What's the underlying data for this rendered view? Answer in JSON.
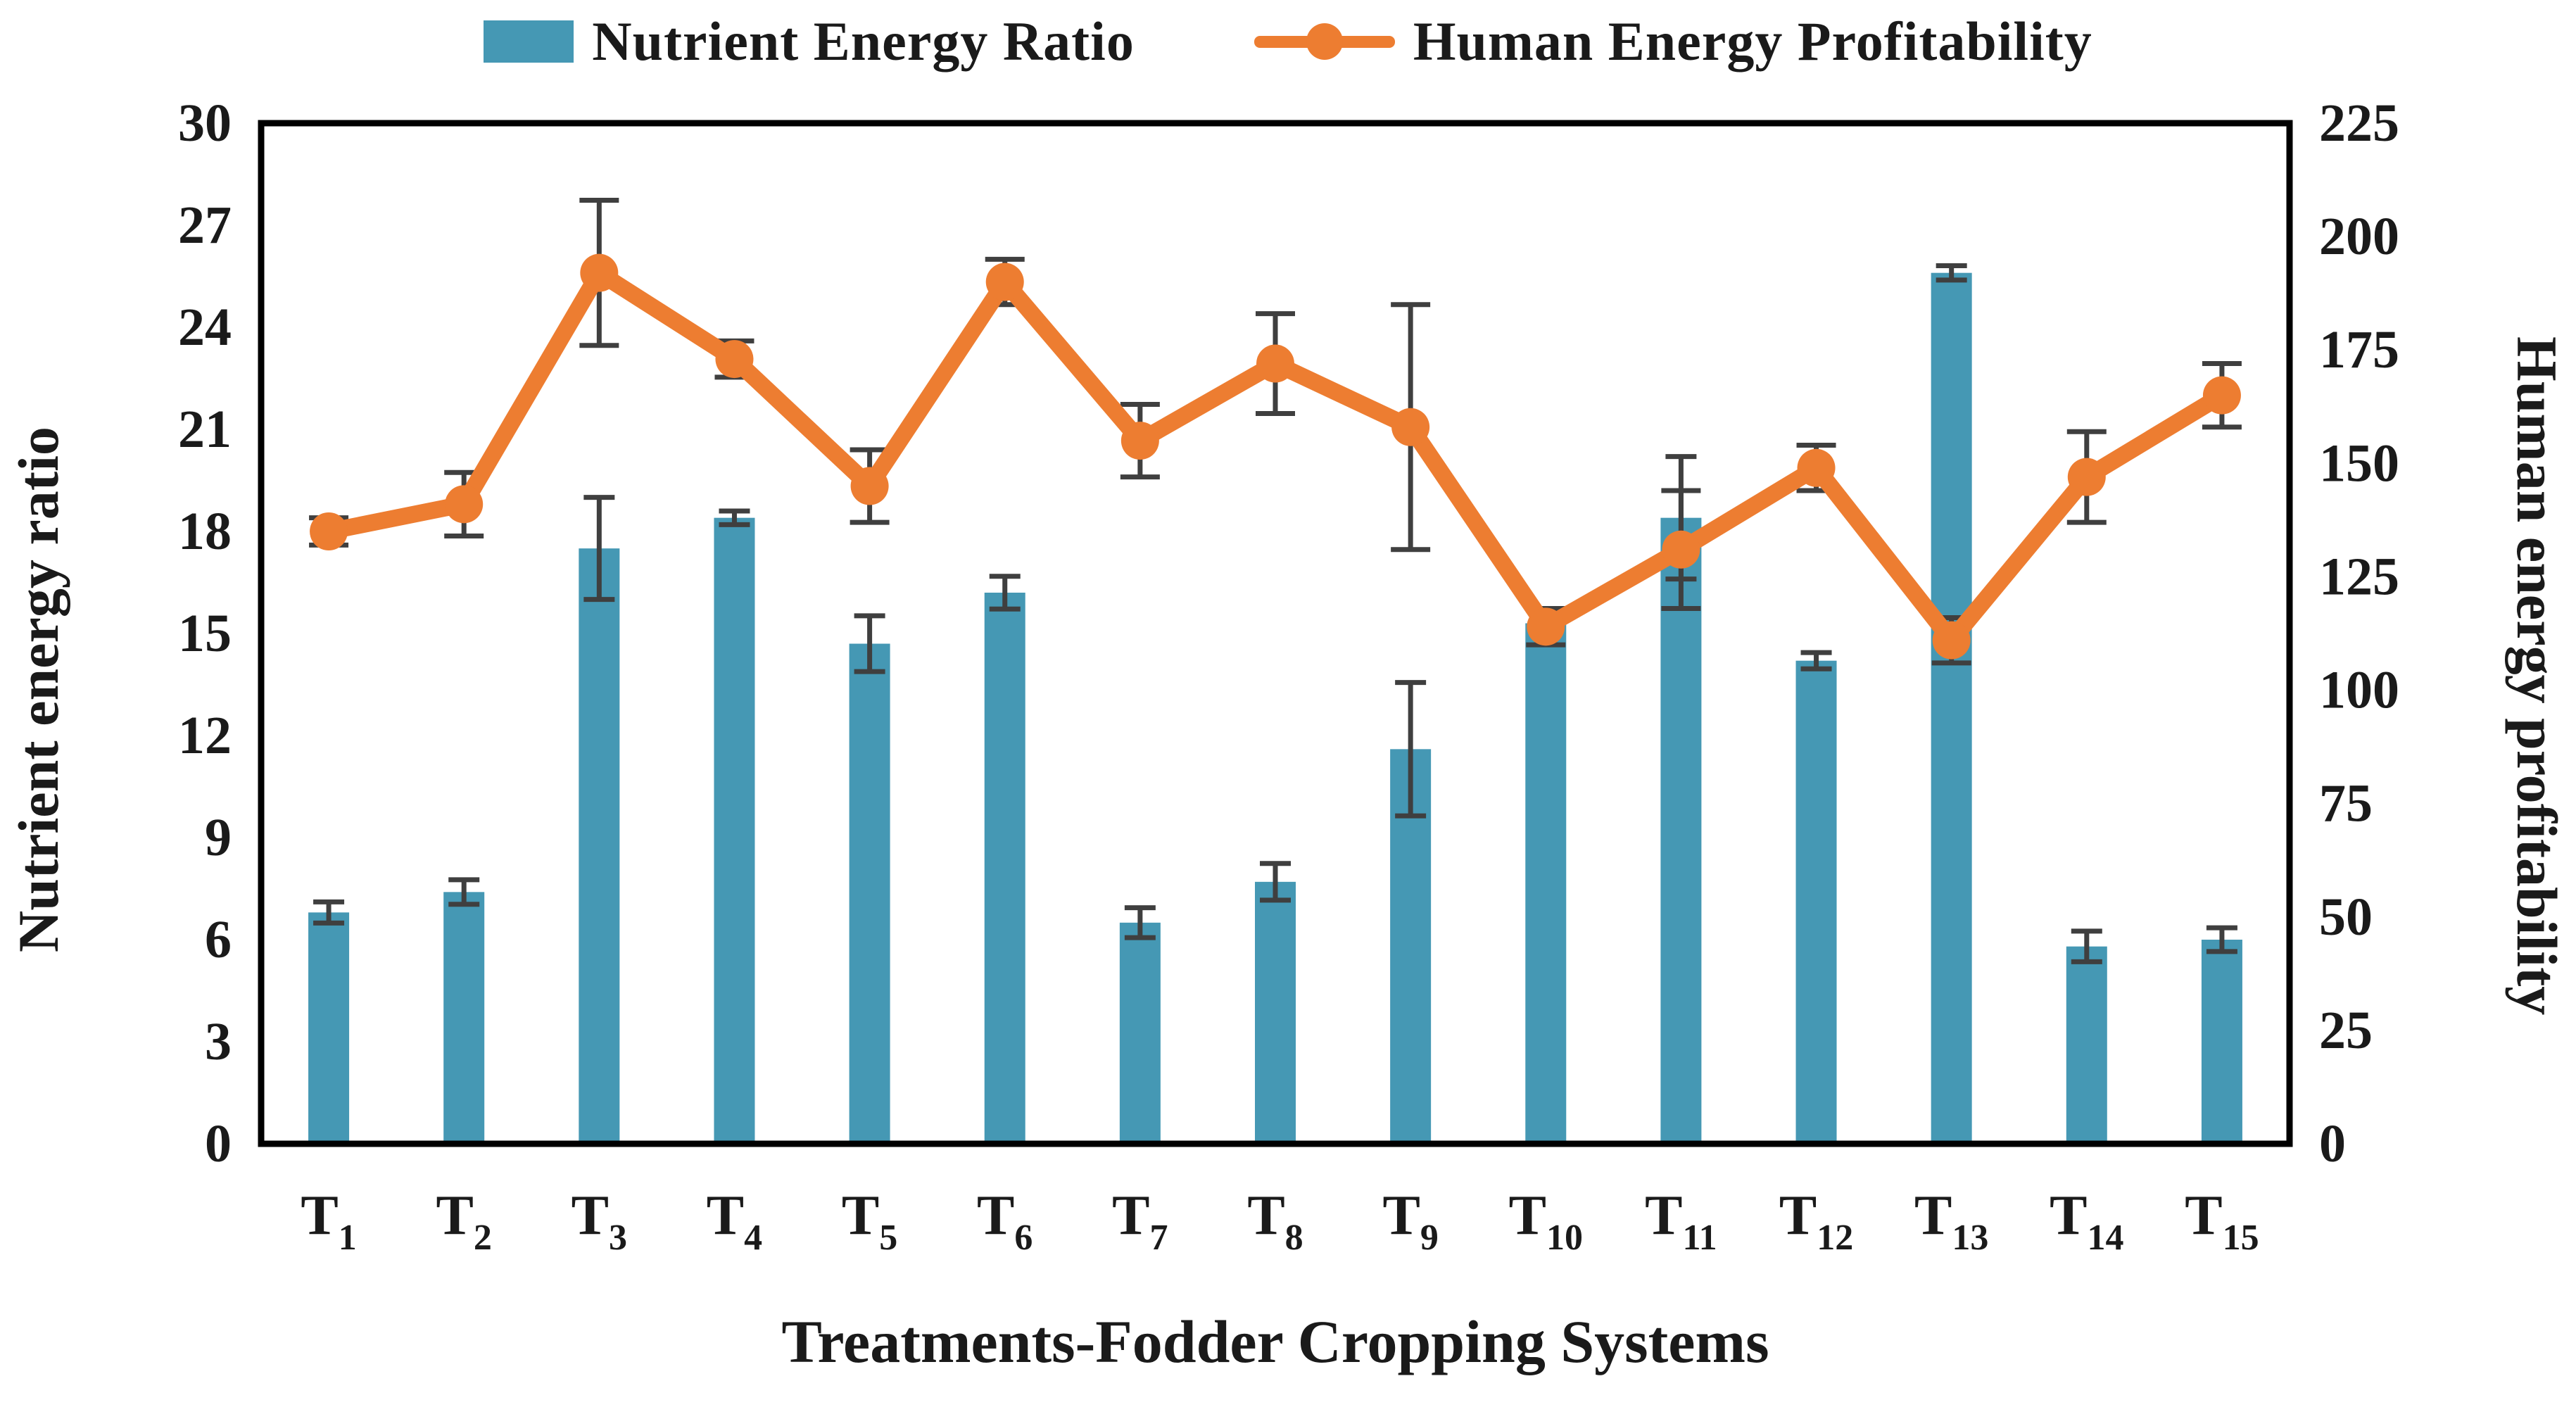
{
  "figure": {
    "legend": [
      {
        "label": "Nutrient Energy Ratio",
        "marker": "bar-swatch"
      },
      {
        "label": "Human Energy Profitability",
        "marker": "line-dot-swatch"
      }
    ]
  },
  "chart_data": {
    "type": "bar",
    "subtype": "combo bar + line, dual y-axes, error bars",
    "title": "",
    "xlabel": "Treatments-Fodder Cropping Systems",
    "x_tick_style": "letter T with numeric subscript",
    "categories": [
      "T1",
      "T2",
      "T3",
      "T4",
      "T5",
      "T6",
      "T7",
      "T8",
      "T9",
      "T10",
      "T11",
      "T12",
      "T13",
      "T14",
      "T15"
    ],
    "axes": {
      "y_left": {
        "title": "Nutrient energy ratio",
        "min": 0,
        "max": 30,
        "step": 3
      },
      "y_right": {
        "title": "Human energy profitability",
        "min": 0,
        "max": 225,
        "step": 25
      }
    },
    "series": [
      {
        "name": "Nutrient Energy Ratio",
        "type": "bar",
        "axis": "left",
        "color": "#4598B4",
        "values": [
          6.8,
          7.4,
          17.5,
          18.4,
          14.7,
          16.2,
          6.5,
          7.7,
          11.6,
          15.3,
          18.4,
          14.2,
          25.6,
          5.8,
          6.0
        ],
        "error": [
          0.31,
          0.36,
          1.5,
          0.2,
          0.82,
          0.48,
          0.44,
          0.54,
          1.96,
          0.3,
          1.8,
          0.24,
          0.21,
          0.45,
          0.35
        ]
      },
      {
        "name": "Human Energy Profitability",
        "type": "line",
        "axis": "right",
        "color": "#ED7D31",
        "values": [
          135,
          141,
          192,
          173,
          145,
          190,
          155,
          172,
          158,
          114,
          131,
          149,
          111,
          147,
          165
        ],
        "error": [
          3,
          7,
          16,
          4,
          8,
          5,
          8,
          11,
          27,
          4,
          13,
          5,
          5,
          10,
          7
        ]
      }
    ],
    "error_bar_color": "#3F3F3F",
    "frame_color": "#000000",
    "legend_position": "top",
    "grid": false
  }
}
